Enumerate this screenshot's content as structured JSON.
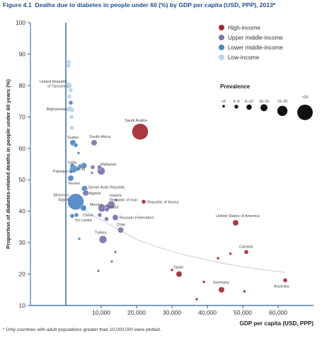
{
  "figure": {
    "label": "Figure 4.1",
    "title": "Deaths due to diabetes in people under 60 (%) by GDP per capita (USD, PPP), 2013*",
    "footnote": "* Only countries with adult populations greater than 10,000,000 were plotted."
  },
  "colors": {
    "high": "#a3282f",
    "upper_middle": "#7f72ac",
    "lower_middle": "#4b86c5",
    "low": "#b5d3ed",
    "axis": "#2f5f9e",
    "trend": "#c6cde0"
  },
  "chart_data": {
    "type": "scatter",
    "title": "Deaths due to diabetes in people under 60 (%) by GDP per capita (USD, PPP), 2013*",
    "xlabel": "GDP per capita (USD, PPP)",
    "ylabel": "Proportion of diabetes-related deaths in people under 60 years (%)",
    "xlim": [
      -10000,
      70000
    ],
    "ylim": [
      10,
      100
    ],
    "x_ticks": [
      10000,
      20000,
      30000,
      40000,
      50000,
      60000
    ],
    "x_tick_labels": [
      "10,000",
      "20,000",
      "30,000",
      "40,000",
      "50,000",
      "60,000"
    ],
    "y_ticks": [
      10,
      20,
      30,
      40,
      50,
      60,
      70,
      80,
      90,
      100
    ],
    "grid": false,
    "legend": {
      "position": "top-right",
      "groups": [
        {
          "key": "high",
          "label": "High-income"
        },
        {
          "key": "upper_middle",
          "label": "Upper middle-income"
        },
        {
          "key": "lower_middle",
          "label": "Lower middle-income"
        },
        {
          "key": "low",
          "label": "Low-income"
        }
      ],
      "size_title": "Prevalence",
      "size_classes": [
        "<6",
        "6–8",
        "8–10",
        "10–15",
        "15–20",
        ">20"
      ]
    },
    "points": [
      {
        "group": "low",
        "x": 800,
        "y": 87.5,
        "size": 2
      },
      {
        "group": "low",
        "x": 800,
        "y": 86.3,
        "size": 2
      },
      {
        "group": "low",
        "x": 900,
        "y": 80,
        "size": 3,
        "label": "United Republic of Tanzania"
      },
      {
        "group": "low",
        "x": 1400,
        "y": 78.5,
        "size": 2
      },
      {
        "group": "low",
        "x": 1000,
        "y": 76.5,
        "size": 2
      },
      {
        "group": "low",
        "x": 1200,
        "y": 72.5,
        "size": 3,
        "label": "Afghanistan"
      },
      {
        "group": "low",
        "x": 1800,
        "y": 72.2,
        "size": 2
      },
      {
        "group": "low",
        "x": 1600,
        "y": 70,
        "size": 2
      },
      {
        "group": "low",
        "x": 1700,
        "y": 66.5,
        "size": 2
      },
      {
        "group": "lower_middle",
        "x": 1400,
        "y": 74.5,
        "size": 2
      },
      {
        "group": "lower_middle",
        "x": 2000,
        "y": 61.8,
        "size": 3,
        "label": "Sudan"
      },
      {
        "group": "lower_middle",
        "x": 2800,
        "y": 61,
        "size": 2
      },
      {
        "group": "lower_middle",
        "x": 3600,
        "y": 58.5,
        "size": 1
      },
      {
        "group": "lower_middle",
        "x": 1800,
        "y": 54.5,
        "size": 2
      },
      {
        "group": "lower_middle",
        "x": 2200,
        "y": 53.5,
        "size": 4,
        "label": "India"
      },
      {
        "group": "lower_middle",
        "x": 4000,
        "y": 54.3,
        "size": 2
      },
      {
        "group": "lower_middle",
        "x": 5100,
        "y": 54.5,
        "size": 3
      },
      {
        "group": "lower_middle",
        "x": 1500,
        "y": 52.7,
        "size": 2,
        "label": "Pakistan"
      },
      {
        "group": "lower_middle",
        "x": 3300,
        "y": 53.5,
        "size": 2,
        "label": "Iraq"
      },
      {
        "group": "lower_middle",
        "x": 1400,
        "y": 50.5,
        "size": 3,
        "label": "Yemen"
      },
      {
        "group": "lower_middle",
        "x": 5300,
        "y": 47.2,
        "size": 3,
        "label": "Syrian Arab Republic"
      },
      {
        "group": "lower_middle",
        "x": 2800,
        "y": 43,
        "size": 6,
        "label": "Morocco / Egypt"
      },
      {
        "group": "lower_middle",
        "x": 5000,
        "y": 41,
        "size": 3
      },
      {
        "group": "lower_middle",
        "x": 3000,
        "y": 38.8,
        "size": 2,
        "label": "Sri Lanka"
      },
      {
        "group": "lower_middle",
        "x": 1800,
        "y": 38.5,
        "size": 2
      },
      {
        "group": "lower_middle",
        "x": 3800,
        "y": 31.2,
        "size": 1
      },
      {
        "group": "upper_middle",
        "x": 8000,
        "y": 61.8,
        "size": 3,
        "label": "South Africa"
      },
      {
        "group": "upper_middle",
        "x": 10000,
        "y": 52.8,
        "size": 4,
        "label": "Malaysia"
      },
      {
        "group": "upper_middle",
        "x": 9500,
        "y": 54,
        "size": 2
      },
      {
        "group": "upper_middle",
        "x": 7600,
        "y": 54,
        "size": 2
      },
      {
        "group": "upper_middle",
        "x": 7400,
        "y": 52.2,
        "size": 1
      },
      {
        "group": "upper_middle",
        "x": 5600,
        "y": 45.8,
        "size": 3,
        "label": "Algeria"
      },
      {
        "group": "upper_middle",
        "x": 12800,
        "y": 42,
        "size": 4,
        "label": "Islamic Republic of Iran"
      },
      {
        "group": "upper_middle",
        "x": 11800,
        "y": 41.3,
        "size": 3
      },
      {
        "group": "upper_middle",
        "x": 10200,
        "y": 41,
        "size": 4,
        "label": "Mexico"
      },
      {
        "group": "upper_middle",
        "x": 14200,
        "y": 43.6,
        "size": 1
      },
      {
        "group": "upper_middle",
        "x": 11600,
        "y": 40.5,
        "size": 2,
        "label": "Brazil"
      },
      {
        "group": "upper_middle",
        "x": 9600,
        "y": 38.8,
        "size": 2,
        "label": "China"
      },
      {
        "group": "upper_middle",
        "x": 14000,
        "y": 38,
        "size": 3,
        "label": "Russian Federation"
      },
      {
        "group": "upper_middle",
        "x": 11500,
        "y": 37.5,
        "size": 2
      },
      {
        "group": "upper_middle",
        "x": 15500,
        "y": 34,
        "size": 3,
        "label": "Chile"
      },
      {
        "group": "upper_middle",
        "x": 10500,
        "y": 31,
        "size": 4,
        "label": "Turkey"
      },
      {
        "group": "upper_middle",
        "x": 14000,
        "y": 27,
        "size": 1
      },
      {
        "group": "upper_middle",
        "x": 13000,
        "y": 24,
        "size": 1
      },
      {
        "group": "upper_middle",
        "x": 9200,
        "y": 21,
        "size": 1
      },
      {
        "group": "high",
        "x": 21000,
        "y": 65.3,
        "size": 6,
        "label": "Saudi Arabia"
      },
      {
        "group": "high",
        "x": 22000,
        "y": 43,
        "size": 2,
        "label": "Republic of Korea"
      },
      {
        "group": "high",
        "x": 48000,
        "y": 36.3,
        "size": 3,
        "label": "United States of America"
      },
      {
        "group": "high",
        "x": 51000,
        "y": 27,
        "size": 2,
        "label": "Canada"
      },
      {
        "group": "high",
        "x": 46500,
        "y": 26.5,
        "size": 1
      },
      {
        "group": "high",
        "x": 43000,
        "y": 25,
        "size": 1
      },
      {
        "group": "high",
        "x": 32000,
        "y": 20,
        "size": 3,
        "label": "Spain"
      },
      {
        "group": "high",
        "x": 44000,
        "y": 15,
        "size": 3,
        "label": "Germany"
      },
      {
        "group": "high",
        "x": 39000,
        "y": 17.5,
        "size": 1
      },
      {
        "group": "high",
        "x": 50500,
        "y": 14.5,
        "size": 1
      },
      {
        "group": "high",
        "x": 62000,
        "y": 18,
        "size": 2,
        "label": "Australia"
      },
      {
        "group": "high",
        "x": 37000,
        "y": 12,
        "size": 1
      },
      {
        "group": "high",
        "x": 30000,
        "y": 21.3,
        "size": 1
      }
    ],
    "trendline": {
      "x": [
        4000,
        8000,
        12000,
        16000,
        20000,
        26000,
        32000,
        38000,
        44000,
        50000,
        56000,
        62000
      ],
      "y": [
        41,
        38.5,
        36,
        33.5,
        31,
        28.6,
        26.5,
        25,
        23.5,
        22.3,
        21.3,
        20.5
      ]
    }
  }
}
